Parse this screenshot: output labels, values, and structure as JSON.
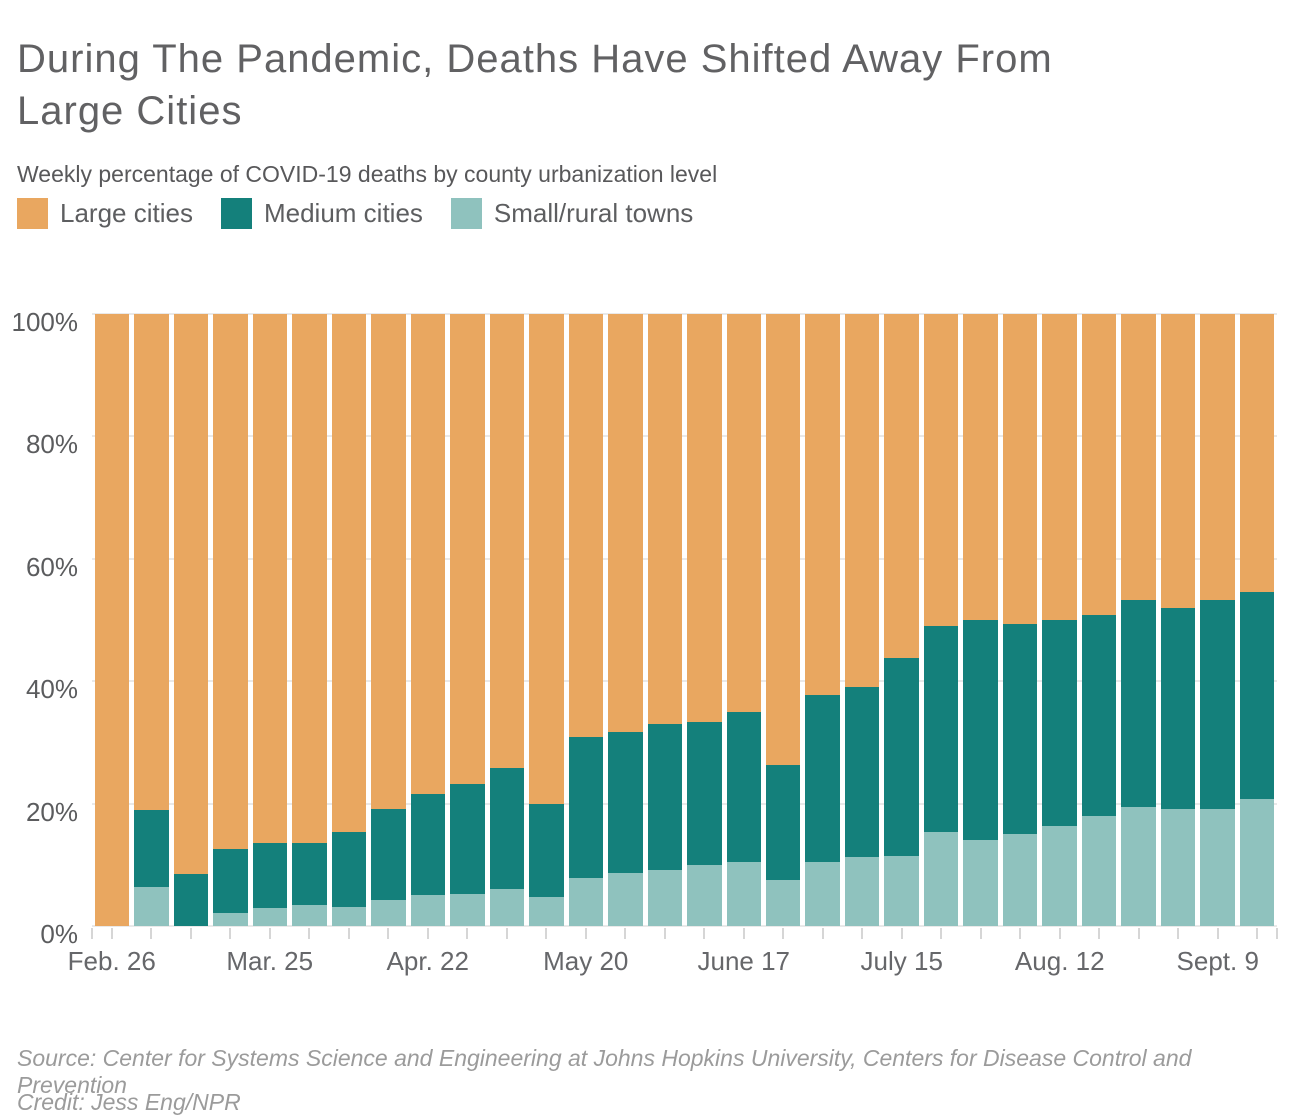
{
  "title": "During The Pandemic, Deaths Have Shifted Away From Large Cities",
  "subtitle": "Weekly percentage of COVID-19 deaths by county urbanization level",
  "legend": [
    {
      "label": "Large cities",
      "color": "#e9a760"
    },
    {
      "label": "Medium cities",
      "color": "#14807b"
    },
    {
      "label": "Small/rural towns",
      "color": "#8fc2be"
    }
  ],
  "colors": {
    "large": "#e9a760",
    "medium": "#14807b",
    "small": "#8fc2be",
    "gridline": "#e9e9e9",
    "axis_text": "#5b5c5e"
  },
  "source": "Source: Center for Systems Science and Engineering at Johns Hopkins University, Centers for Disease Control and Prevention",
  "credit": "Credit: Jess Eng/NPR",
  "chart_data": {
    "type": "bar",
    "stacked": true,
    "percent_stack": true,
    "title": "During The Pandemic, Deaths Have Shifted Away From Large Cities",
    "subtitle": "Weekly percentage of COVID-19 deaths by county urbanization level",
    "xlabel": "",
    "ylabel": "",
    "ylim": [
      0,
      100
    ],
    "grid": true,
    "legend_position": "top-left",
    "y_ticks": [
      {
        "label": "100%",
        "value": 100
      },
      {
        "label": "80%",
        "value": 80
      },
      {
        "label": "60%",
        "value": 60
      },
      {
        "label": "40%",
        "value": 40
      },
      {
        "label": "20%",
        "value": 20
      },
      {
        "label": "0%",
        "value": 0
      }
    ],
    "series_order_bottom_to_top": [
      "Small/rural towns",
      "Medium cities",
      "Large cities"
    ],
    "bars": [
      {
        "axis_label": "Feb. 26",
        "large": 100.0,
        "medium": 0.0,
        "small": 0.0
      },
      {
        "axis_label": "",
        "large": 81.0,
        "medium": 12.6,
        "small": 6.4
      },
      {
        "axis_label": "",
        "large": 91.5,
        "medium": 8.5,
        "small": 0.0
      },
      {
        "axis_label": "",
        "large": 87.4,
        "medium": 10.4,
        "small": 2.2
      },
      {
        "axis_label": "Mar. 25",
        "large": 86.4,
        "medium": 10.6,
        "small": 3.0
      },
      {
        "axis_label": "",
        "large": 86.4,
        "medium": 10.1,
        "small": 3.5
      },
      {
        "axis_label": "",
        "large": 84.7,
        "medium": 12.2,
        "small": 3.1
      },
      {
        "axis_label": "",
        "large": 80.8,
        "medium": 15.0,
        "small": 4.2
      },
      {
        "axis_label": "Apr. 22",
        "large": 78.5,
        "medium": 16.4,
        "small": 5.1
      },
      {
        "axis_label": "",
        "large": 76.8,
        "medium": 18.0,
        "small": 5.2
      },
      {
        "axis_label": "",
        "large": 74.2,
        "medium": 19.8,
        "small": 6.0
      },
      {
        "axis_label": "",
        "large": 80.0,
        "medium": 15.2,
        "small": 4.8
      },
      {
        "axis_label": "May 20",
        "large": 69.1,
        "medium": 23.0,
        "small": 7.9
      },
      {
        "axis_label": "",
        "large": 68.3,
        "medium": 23.0,
        "small": 8.7
      },
      {
        "axis_label": "",
        "large": 67.0,
        "medium": 23.9,
        "small": 9.1
      },
      {
        "axis_label": "",
        "large": 66.6,
        "medium": 23.5,
        "small": 9.9
      },
      {
        "axis_label": "June 17",
        "large": 65.0,
        "medium": 24.6,
        "small": 10.4
      },
      {
        "axis_label": "",
        "large": 73.7,
        "medium": 18.8,
        "small": 7.5
      },
      {
        "axis_label": "",
        "large": 62.2,
        "medium": 27.4,
        "small": 10.4
      },
      {
        "axis_label": "",
        "large": 61.0,
        "medium": 27.8,
        "small": 11.2
      },
      {
        "axis_label": "July 15",
        "large": 56.2,
        "medium": 32.4,
        "small": 11.4
      },
      {
        "axis_label": "",
        "large": 51.0,
        "medium": 33.6,
        "small": 15.4
      },
      {
        "axis_label": "",
        "large": 50.0,
        "medium": 35.9,
        "small": 14.1
      },
      {
        "axis_label": "",
        "large": 50.7,
        "medium": 34.2,
        "small": 15.1
      },
      {
        "axis_label": "Aug. 12",
        "large": 50.0,
        "medium": 33.6,
        "small": 16.4
      },
      {
        "axis_label": "",
        "large": 49.1,
        "medium": 33.0,
        "small": 17.9
      },
      {
        "axis_label": "",
        "large": 46.8,
        "medium": 33.7,
        "small": 19.5
      },
      {
        "axis_label": "",
        "large": 48.1,
        "medium": 32.7,
        "small": 19.2
      },
      {
        "axis_label": "Sept. 9",
        "large": 46.7,
        "medium": 34.1,
        "small": 19.2
      },
      {
        "axis_label": "",
        "large": 45.4,
        "medium": 33.8,
        "small": 20.8
      }
    ]
  }
}
